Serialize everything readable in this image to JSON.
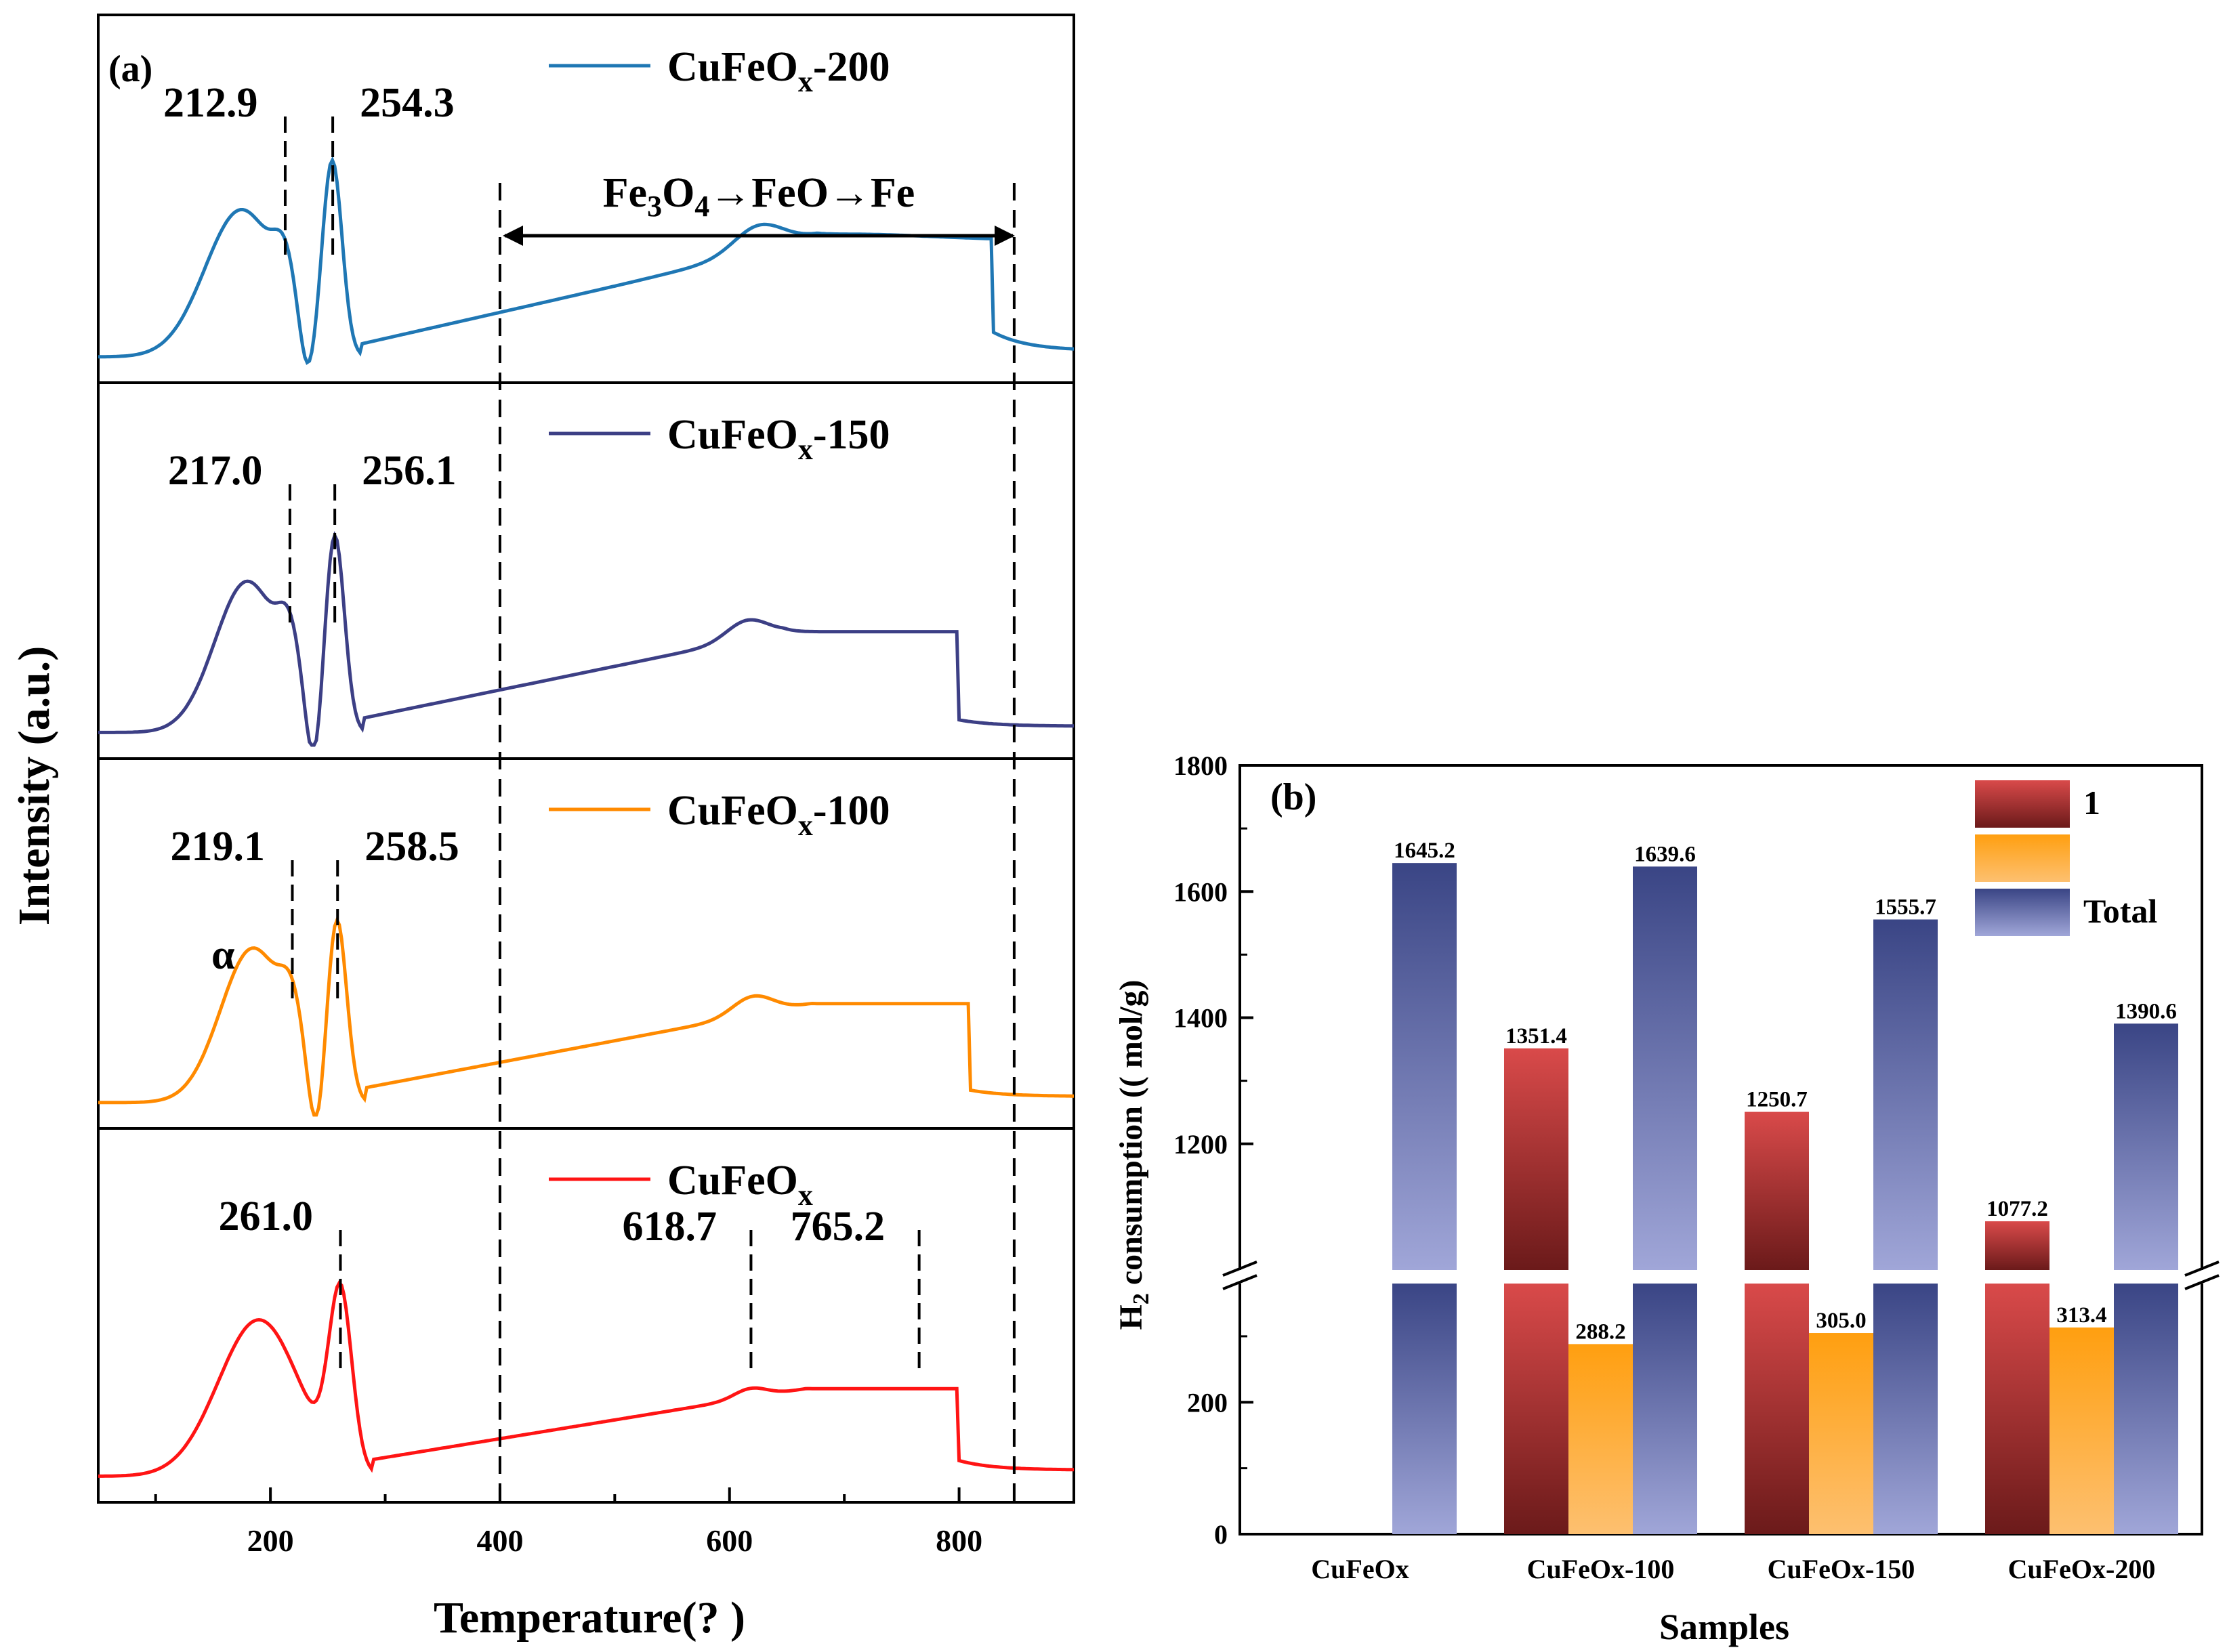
{
  "panel_a": {
    "label": "(a)",
    "xlabel": "Temperature(?  )",
    "ylabel": "Intensity (a.u.)",
    "xlim": [
      50,
      900
    ],
    "xticks": [
      "200",
      "400",
      "600",
      "800"
    ],
    "alpha_label": "α",
    "reduction_note": {
      "pre": "Fe",
      "sub1": "3",
      "mid": "O",
      "sub2": "4",
      "post": "→FeO→Fe",
      "x_range": [
        400,
        848
      ]
    },
    "traces": [
      {
        "name": "CuFeOx-200",
        "name_main": "CuFeO",
        "name_sub": "x",
        "name_suffix": "-200",
        "color": "#1f77b4",
        "peaks": [
          {
            "x": 212.9,
            "label": "212.9"
          },
          {
            "x": 254.3,
            "label": "254.3"
          }
        ]
      },
      {
        "name": "CuFeOx-150",
        "name_main": "CuFeO",
        "name_sub": "x",
        "name_suffix": "-150",
        "color": "#3c3f85",
        "peaks": [
          {
            "x": 217.0,
            "label": "217.0"
          },
          {
            "x": 256.1,
            "label": "256.1"
          }
        ]
      },
      {
        "name": "CuFeOx-100",
        "name_main": "CuFeO",
        "name_sub": "x",
        "name_suffix": "-100",
        "color": "#ff8a00",
        "peaks": [
          {
            "x": 219.1,
            "label": "219.1"
          },
          {
            "x": 258.5,
            "label": "258.5"
          }
        ]
      },
      {
        "name": "CuFeOx",
        "name_main": "CuFeO",
        "name_sub": "x",
        "name_suffix": "",
        "color": "#ff1414",
        "peaks": [
          {
            "x": 261.0,
            "label": "261.0"
          },
          {
            "x": 618.7,
            "label": "618.7"
          },
          {
            "x": 765.2,
            "label": "765.2"
          }
        ]
      }
    ]
  },
  "chart_data": {
    "type": "bar",
    "label": "(b)",
    "xlabel": "Samples",
    "ylabel": {
      "pre": "H",
      "sub": "2",
      "post": " consumption (( mol/g)"
    },
    "categories": [
      "CuFeOx",
      "CuFeOx-100",
      "CuFeOx-150",
      "CuFeOx-200"
    ],
    "y_break": [
      380,
      1000
    ],
    "yticks_lower": [
      "0",
      "200"
    ],
    "yticks_upper": [
      "1200",
      "1400",
      "1600",
      "1800"
    ],
    "series": [
      {
        "name": "1",
        "color_top": "#d94a4a",
        "color_bottom": "#6b1a1a",
        "values": [
          null,
          1351.4,
          1250.7,
          1077.2
        ],
        "labels": [
          "",
          "1351.4",
          "1250.7",
          "1077.2"
        ]
      },
      {
        "name": "",
        "color_top": "#ff9f10",
        "color_bottom": "#fdc070",
        "values": [
          null,
          288.2,
          305.0,
          313.4
        ],
        "labels": [
          "",
          "288.2",
          "305.0",
          "313.4"
        ]
      },
      {
        "name": "Total",
        "color_top": "#3a4585",
        "color_bottom": "#a0a6d8",
        "values": [
          1645.2,
          1639.6,
          1555.7,
          1390.6
        ],
        "labels": [
          "1645.2",
          "1639.6",
          "1555.7",
          "1390.6"
        ]
      }
    ],
    "legend_position": "top-right"
  }
}
